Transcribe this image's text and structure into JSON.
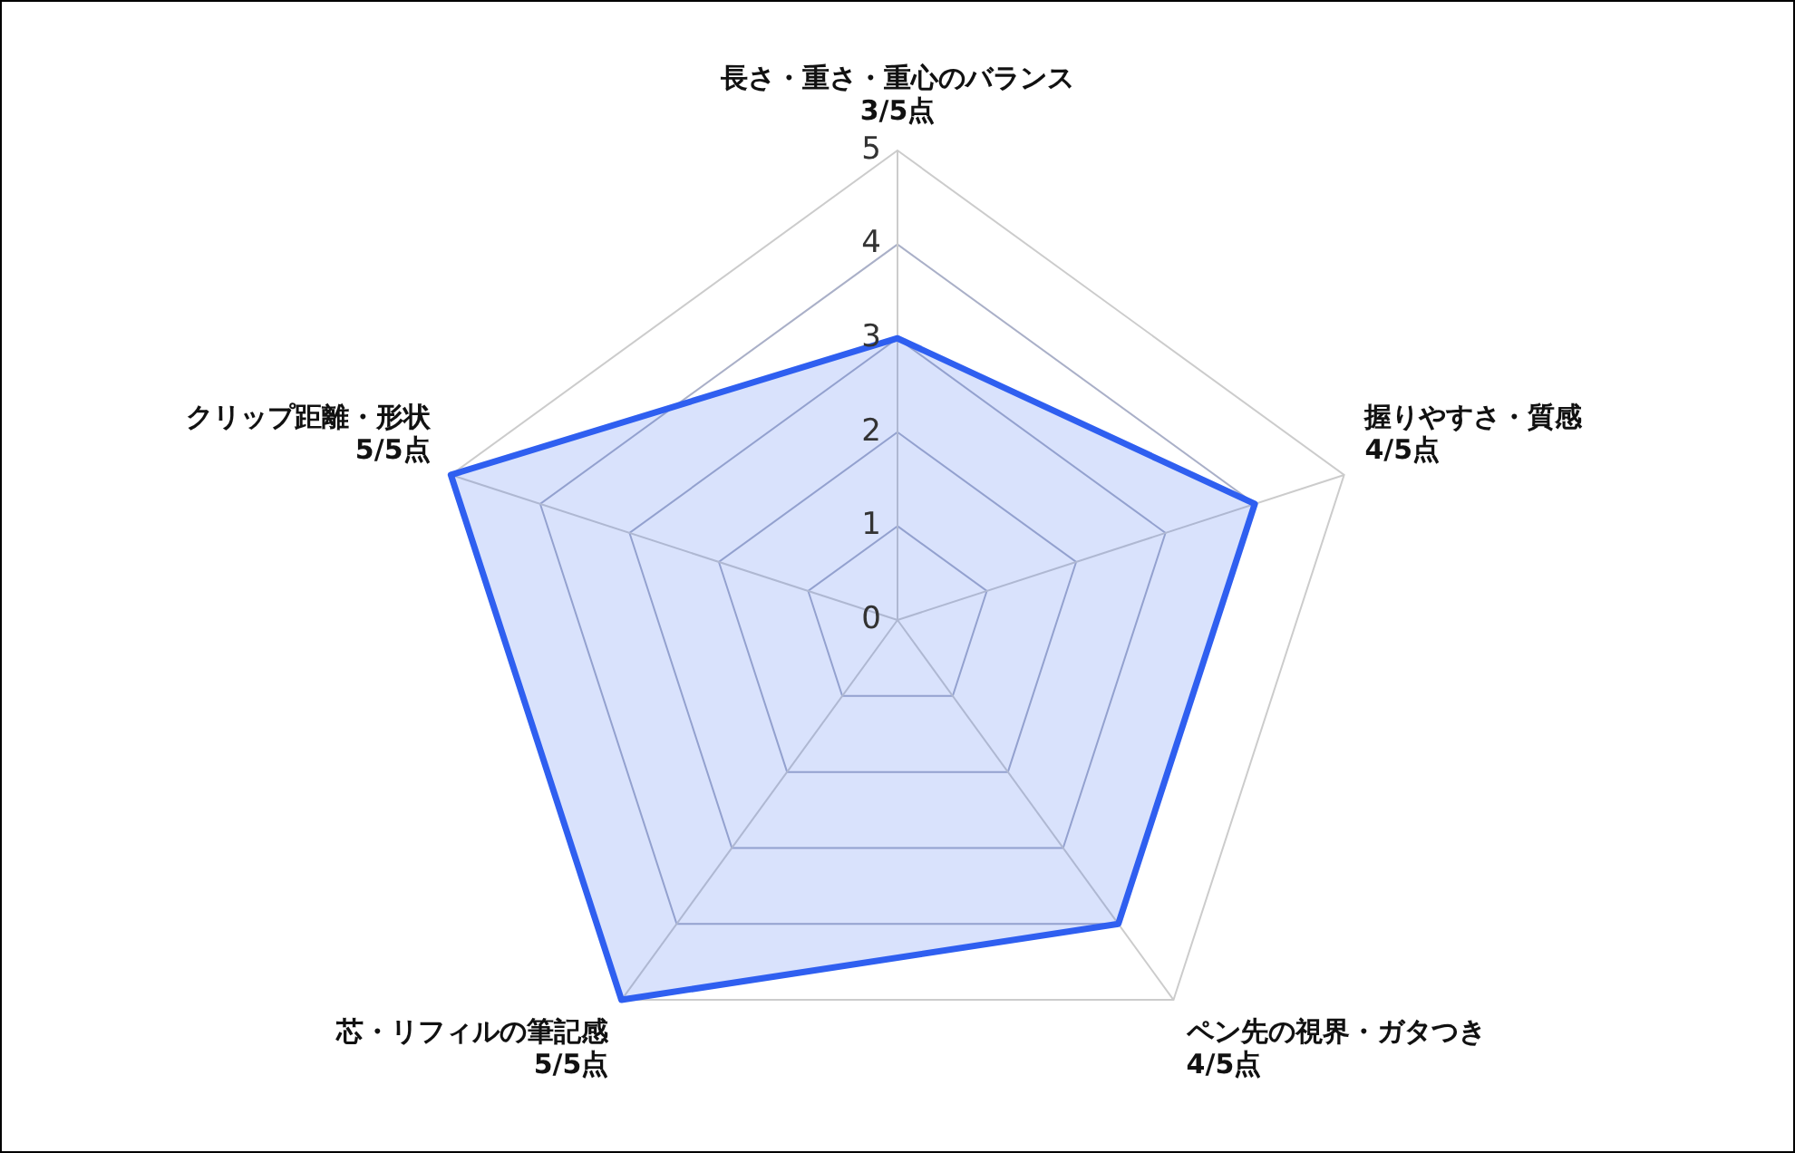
{
  "chart_data": {
    "type": "radar",
    "categories": [
      "長さ・重さ・重心のバランス\n3/5点",
      "握りやすさ・質感\n4/5点",
      "ペン先の視界・ガタつき\n4/5点",
      "芯・リフィルの筆記感\n5/5点",
      "クリップ距離・形状\n5/5点"
    ],
    "series": [
      {
        "color": "#2f5ff0",
        "values": [
          3,
          4,
          4,
          5,
          5
        ]
      }
    ],
    "ylim": [
      0,
      5
    ],
    "yticks": [
      0,
      1,
      2,
      3,
      4,
      5
    ],
    "grid": true,
    "legend": false,
    "marker": "none",
    "line_style": "solid"
  }
}
